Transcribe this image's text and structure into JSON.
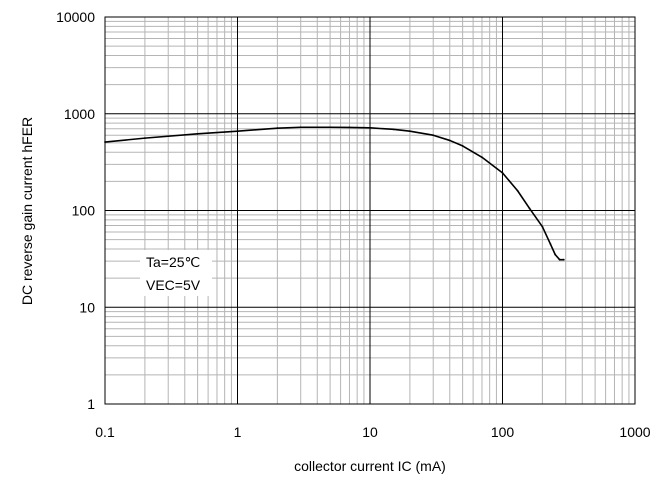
{
  "chart_data": {
    "type": "line",
    "title": "",
    "xlabel": "collector current IC (mA)",
    "ylabel": "DC reverse gain current hFER",
    "xscale": "log",
    "yscale": "log",
    "xlim": [
      0.1,
      1000
    ],
    "ylim": [
      1,
      10000
    ],
    "grid": true,
    "x_ticks": [
      "0.1",
      "1",
      "10",
      "100",
      "1000"
    ],
    "y_ticks": [
      "1",
      "10",
      "100",
      "1000",
      "10000"
    ],
    "annotations": [
      "Ta=25℃",
      "VEC=5V"
    ],
    "series": [
      {
        "name": "",
        "color": "#000000",
        "x": [
          0.1,
          0.2,
          0.5,
          1,
          2,
          3,
          5,
          7,
          10,
          15,
          20,
          30,
          40,
          50,
          70,
          100,
          130,
          160,
          200,
          230,
          250,
          270,
          290
        ],
        "y": [
          510,
          560,
          620,
          660,
          710,
          725,
          725,
          722,
          715,
          690,
          660,
          600,
          530,
          465,
          355,
          245,
          160,
          105,
          68,
          45,
          35,
          31,
          31
        ]
      }
    ]
  }
}
